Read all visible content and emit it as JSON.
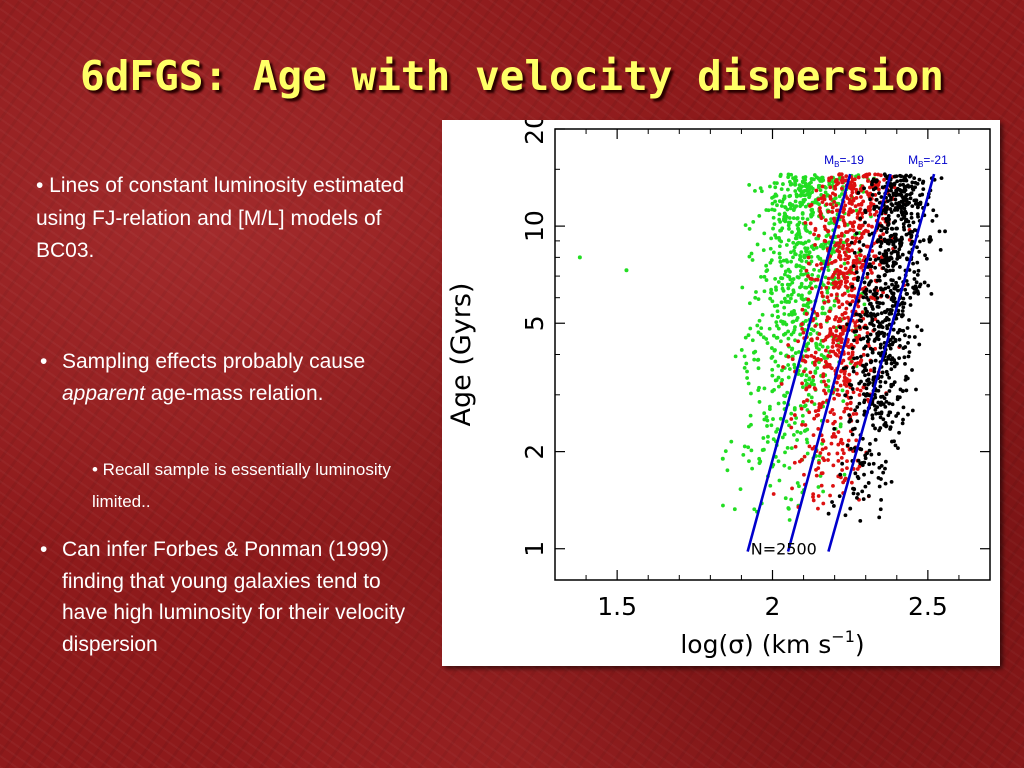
{
  "slide": {
    "title": "6dFGS: Age with velocity dispersion",
    "bullet1": "• Lines of constant luminosity estimated using FJ-relation and [M/L] models of BC03.",
    "bullet2_prefix": "Sampling effects probably cause ",
    "bullet2_em": "apparent",
    "bullet2_suffix": " age-mass relation.",
    "bullet2_sub": "• Recall sample is essentially luminosity limited..",
    "bullet3": "Can infer Forbes & Ponman (1999) finding that young galaxies tend to have high luminosity for their velocity dispersion",
    "bullet_marker": "•"
  },
  "chart_data": {
    "type": "scatter",
    "xlabel": "log(σ)  (km s",
    "xlabel_sup": "−1",
    "xlabel_close": ")",
    "ylabel": "Age  (Gyrs)",
    "x_ticks": [
      1.5,
      2,
      2.5
    ],
    "x_tick_labels": [
      "1.5",
      "2",
      "2.5"
    ],
    "y_ticks": [
      1,
      2,
      5,
      10,
      20
    ],
    "y_tick_labels": [
      "1",
      "2",
      "5",
      "10",
      "20"
    ],
    "xlim": [
      1.3,
      2.7
    ],
    "ylim": [
      0.8,
      20
    ],
    "y_scale": "log",
    "annotation": "N=2500",
    "colors": {
      "green": "#22dd22",
      "red": "#dd1111",
      "black": "#000000",
      "line": "#0000cc"
    },
    "lines": [
      {
        "label_main": "M",
        "label_sub": "B",
        "label_rest": "=-19",
        "x0": 1.92,
        "y0": 0.98,
        "x1": 2.25,
        "y1": 14.5
      },
      {
        "label_main": "",
        "label_sub": "",
        "label_rest": "",
        "x0": 2.05,
        "y0": 0.98,
        "x1": 2.38,
        "y1": 14.5
      },
      {
        "label_main": "M",
        "label_sub": "B",
        "label_rest": "=-21",
        "x0": 2.18,
        "y0": 0.98,
        "x1": 2.52,
        "y1": 14.5
      }
    ],
    "series": [
      {
        "color": "green",
        "x_center": 2.12,
        "x_spread": 0.15,
        "count": 850
      },
      {
        "color": "red",
        "x_center": 2.26,
        "x_spread": 0.12,
        "count": 800
      },
      {
        "color": "black",
        "x_center": 2.4,
        "x_spread": 0.1,
        "count": 850
      }
    ],
    "outliers": [
      {
        "color": "green",
        "x": 1.38,
        "y": 8.0
      },
      {
        "color": "green",
        "x": 1.53,
        "y": 7.3
      },
      {
        "color": "green",
        "x": 1.84,
        "y": 1.9
      }
    ]
  }
}
